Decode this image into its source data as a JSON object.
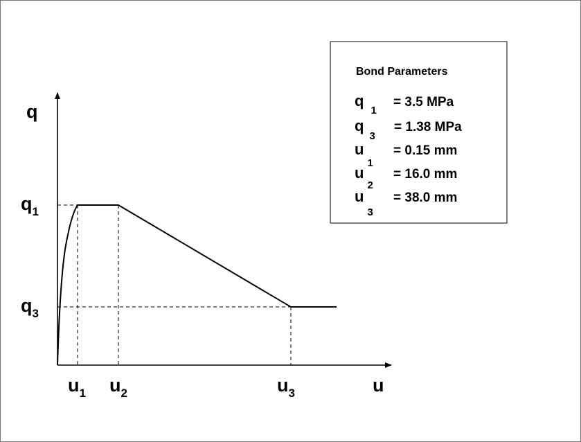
{
  "diagram": {
    "axis_labels": {
      "y": "q",
      "x": "u"
    },
    "tick_labels": {
      "q1": {
        "symbol": "q",
        "sub": "1"
      },
      "q3": {
        "symbol": "q",
        "sub": "3"
      },
      "u1": {
        "symbol": "u",
        "sub": "1"
      },
      "u2": {
        "symbol": "u",
        "sub": "2"
      },
      "u3": {
        "symbol": "u",
        "sub": "3"
      }
    },
    "legend": {
      "title": "Bond Parameters",
      "rows": [
        {
          "symbol": "q",
          "sub": "1",
          "text": "= 3.5 MPa"
        },
        {
          "symbol": "q",
          "sub": "3",
          "text": "= 1.38 MPa"
        },
        {
          "symbol": "u",
          "sub": "1",
          "text": "= 0.15 mm"
        },
        {
          "symbol": "u",
          "sub": "2",
          "text": "= 16.0 mm"
        },
        {
          "symbol": "u",
          "sub": "3",
          "text": "= 38.0 mm"
        }
      ]
    }
  }
}
